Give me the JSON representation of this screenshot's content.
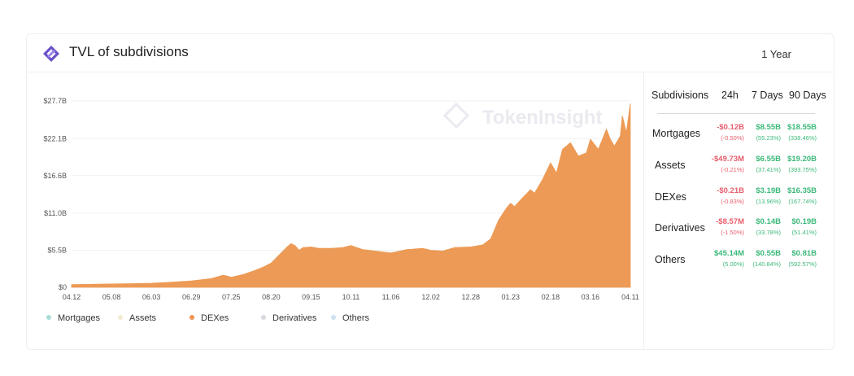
{
  "header": {
    "title": "TVL of subdivisions",
    "period": "1 Year",
    "logo_icon": "tokeninsight-logo-icon"
  },
  "watermark": "TokenInsight",
  "legend": [
    {
      "label": "Mortgages",
      "color": "#a8dcd9"
    },
    {
      "label": "Assets",
      "color": "#f3ecd2"
    },
    {
      "label": "DEXes",
      "color": "#ec9351"
    },
    {
      "label": "Derivatives",
      "color": "#d6d9e0"
    },
    {
      "label": "Others",
      "color": "#cfe1f3"
    }
  ],
  "colors": {
    "area": "#ec9a55",
    "negative": "#e85d6c",
    "positive": "#3bb97a"
  },
  "table": {
    "headers": [
      "Subdivisions",
      "24h",
      "7 Days",
      "90 Days"
    ],
    "rows": [
      {
        "name": "Mortgages",
        "d1": "-$0.12B",
        "d1p": "(-0.50%)",
        "d7": "$8.55B",
        "d7p": "(55.23%)",
        "d90": "$18.55B",
        "d90p": "(338.46%)",
        "d1neg": true
      },
      {
        "name": "Assets",
        "d1": "-$49.73M",
        "d1p": "(-0.21%)",
        "d7": "$6.55B",
        "d7p": "(37.41%)",
        "d90": "$19.20B",
        "d90p": "(393.75%)",
        "d1neg": true
      },
      {
        "name": "DEXes",
        "d1": "-$0.21B",
        "d1p": "(-0.83%)",
        "d7": "$3.19B",
        "d7p": "(13.96%)",
        "d90": "$16.35B",
        "d90p": "(167.74%)",
        "d1neg": true
      },
      {
        "name": "Derivatives",
        "d1": "-$8.57M",
        "d1p": "(-1.50%)",
        "d7": "$0.14B",
        "d7p": "(33.78%)",
        "d90": "$0.19B",
        "d90p": "(51.41%)",
        "d1neg": true
      },
      {
        "name": "Others",
        "d1": "$45.14M",
        "d1p": "(5.00%)",
        "d7": "$0.55B",
        "d7p": "(140.84%)",
        "d90": "$0.81B",
        "d90p": "(592.57%)",
        "d1neg": false
      }
    ]
  },
  "chart_data": {
    "type": "area",
    "title": "",
    "xlabel": "",
    "ylabel": "",
    "y_unit": "$B",
    "ylim": [
      0,
      27.7
    ],
    "y_ticks": [
      0,
      5.5,
      11.0,
      16.6,
      22.1,
      27.7
    ],
    "y_tick_labels": [
      "$0",
      "$5.5B",
      "$11.0B",
      "$16.6B",
      "$22.1B",
      "$27.7B"
    ],
    "x_tick_labels": [
      "04.12",
      "05.08",
      "06.03",
      "06.29",
      "07.25",
      "08.20",
      "09.15",
      "10.11",
      "11.06",
      "12.02",
      "12.28",
      "01.23",
      "02.18",
      "03.16",
      "04.11"
    ],
    "grid": true,
    "legend_position": "bottom-left",
    "series": [
      {
        "name": "DEXes",
        "x": [
          0,
          0.5,
          1,
          1.5,
          2,
          2.5,
          3,
          3.5,
          3.8,
          4,
          4.3,
          4.6,
          4.8,
          5,
          5.2,
          5.4,
          5.5,
          5.6,
          5.7,
          5.8,
          6,
          6.2,
          6.5,
          6.8,
          7,
          7.3,
          7.6,
          8,
          8.4,
          8.8,
          9,
          9.3,
          9.6,
          10,
          10.3,
          10.5,
          10.7,
          10.9,
          11,
          11.1,
          11.3,
          11.5,
          11.6,
          11.8,
          12,
          12.15,
          12.3,
          12.5,
          12.7,
          12.9,
          13,
          13.2,
          13.4,
          13.5,
          13.6,
          13.75,
          13.8,
          13.9,
          14
        ],
        "values": [
          0.4,
          0.45,
          0.5,
          0.55,
          0.6,
          0.75,
          0.95,
          1.3,
          1.8,
          1.5,
          1.9,
          2.5,
          3.0,
          3.6,
          4.8,
          6.0,
          6.5,
          6.2,
          5.5,
          5.9,
          6.0,
          5.8,
          5.8,
          5.9,
          6.2,
          5.6,
          5.4,
          5.1,
          5.6,
          5.8,
          5.5,
          5.4,
          5.9,
          6.0,
          6.3,
          7.2,
          10.0,
          11.8,
          12.5,
          12.0,
          13.3,
          14.5,
          14.0,
          16.0,
          18.5,
          17.0,
          20.5,
          21.5,
          19.5,
          20.0,
          22.0,
          20.5,
          23.5,
          22.0,
          21.0,
          22.5,
          25.5,
          23.0,
          27.3
        ]
      }
    ]
  }
}
